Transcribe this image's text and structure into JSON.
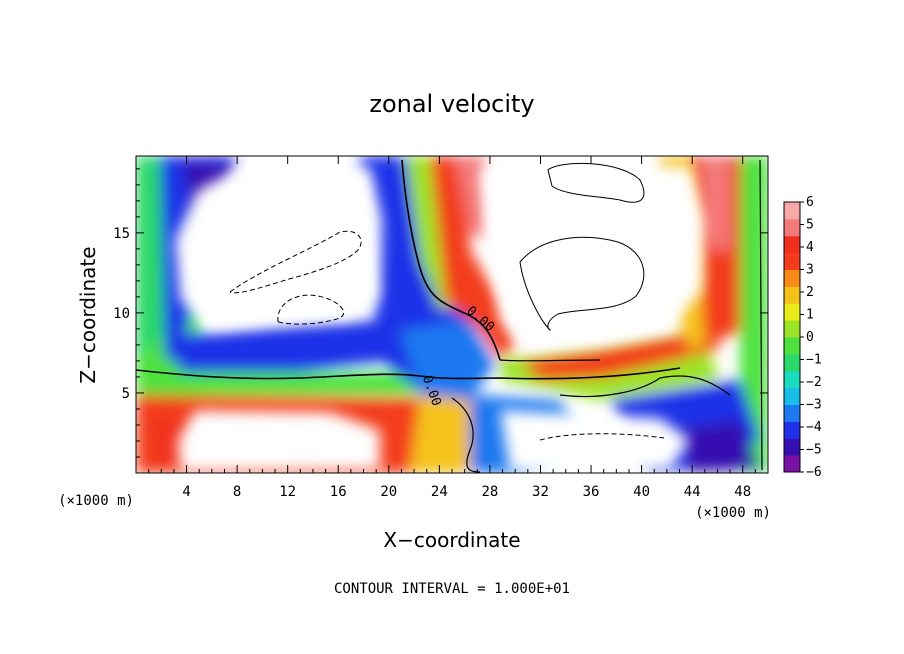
{
  "chart_data": {
    "type": "heatmap",
    "title": "zonal velocity",
    "xlabel": "X−coordinate",
    "ylabel": "Z−coordinate",
    "x_units": "(×1000 m)",
    "y_units": "(×1000 m)",
    "xlim": [
      0,
      50
    ],
    "ylim": [
      0,
      19.8
    ],
    "x_ticks": [
      4,
      8,
      12,
      16,
      20,
      24,
      28,
      32,
      36,
      40,
      44,
      48
    ],
    "y_ticks": [
      5,
      10,
      15
    ],
    "colorbar": {
      "min": -6,
      "max": 6,
      "ticks": [
        6,
        5,
        4,
        3,
        2,
        1,
        0,
        -1,
        -2,
        -3,
        -4,
        -5,
        -6
      ],
      "tick_labels": [
        "6",
        "5",
        "4",
        "3",
        "2",
        "1",
        "0",
        "−1",
        "−2",
        "−3",
        "−4",
        "−5",
        "−6"
      ],
      "colors": [
        "#7b10a8",
        "#3410b0",
        "#1e30e8",
        "#1e78f0",
        "#19bce6",
        "#19dcc0",
        "#2cd868",
        "#4ee23e",
        "#9ce428",
        "#eaea19",
        "#f5c21c",
        "#f88a18",
        "#f33c1e",
        "#f0301e",
        "#f47a7a",
        "#f8a8a8"
      ]
    },
    "contour_interval": "1.000E+01",
    "contour_label": "0.00",
    "footer": "CONTOUR INTERVAL = 1.000E+01"
  }
}
